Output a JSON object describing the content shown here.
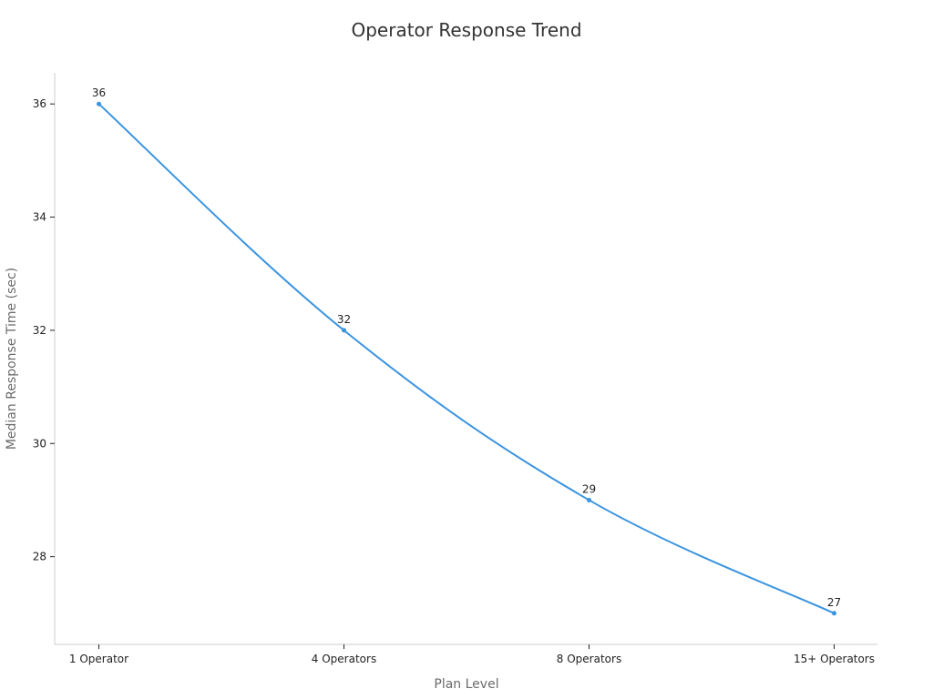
{
  "chart_data": {
    "type": "line",
    "title": "Operator Response Trend",
    "xlabel": "Plan Level",
    "ylabel": "Median Response Time (sec)",
    "categories": [
      "1 Operator",
      "4 Operators",
      "8 Operators",
      "15+ Operators"
    ],
    "values": [
      36,
      32,
      29,
      27
    ],
    "data_labels": [
      "36",
      "32",
      "29",
      "27"
    ],
    "y_ticks": [
      28,
      30,
      32,
      34,
      36
    ],
    "y_tick_labels": [
      "28",
      "30",
      "32",
      "34",
      "36"
    ],
    "ylim": [
      26.45,
      36.55
    ],
    "grid": false,
    "legend": "none",
    "line_style": "smooth",
    "colors": {
      "line": "#3b94e0",
      "axis": "#cccccc",
      "text": "#222222",
      "title": "#333333",
      "axis_title": "#6b6b6b"
    }
  }
}
